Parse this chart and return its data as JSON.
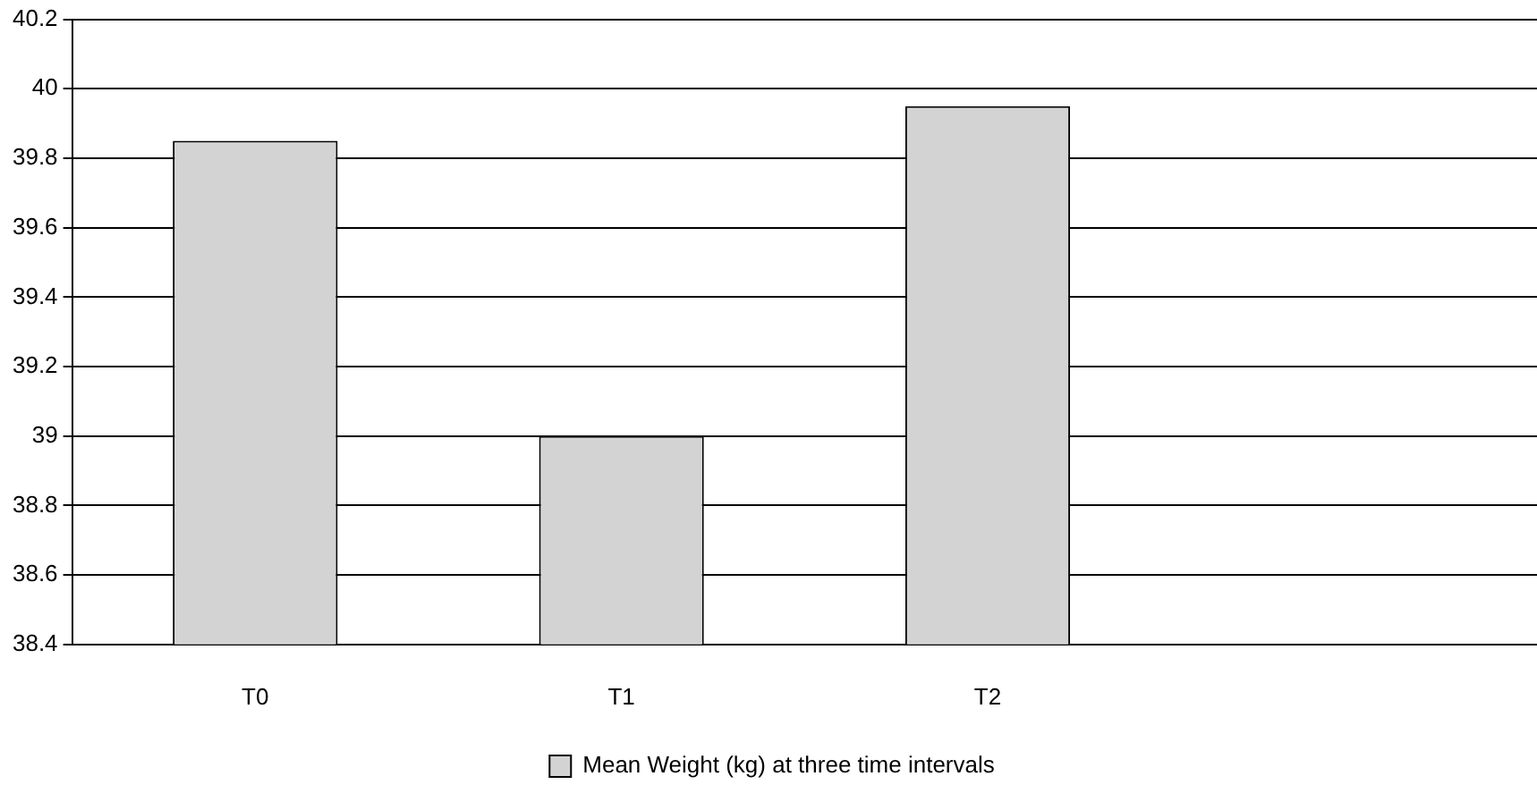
{
  "chart_data": {
    "type": "bar",
    "categories": [
      "T0",
      "T1",
      "T2",
      null
    ],
    "series": [
      {
        "name": "Mean Weight (kg) at three time intervals",
        "color": "#d3d3d3",
        "values": [
          39.85,
          39.0,
          39.95,
          null
        ]
      }
    ],
    "ylim": [
      38.4,
      40.2
    ],
    "yticks": [
      38.4,
      38.6,
      38.8,
      39,
      39.2,
      39.4,
      39.6,
      39.8,
      40,
      40.2
    ],
    "grid": "y",
    "legend": "bottom"
  }
}
